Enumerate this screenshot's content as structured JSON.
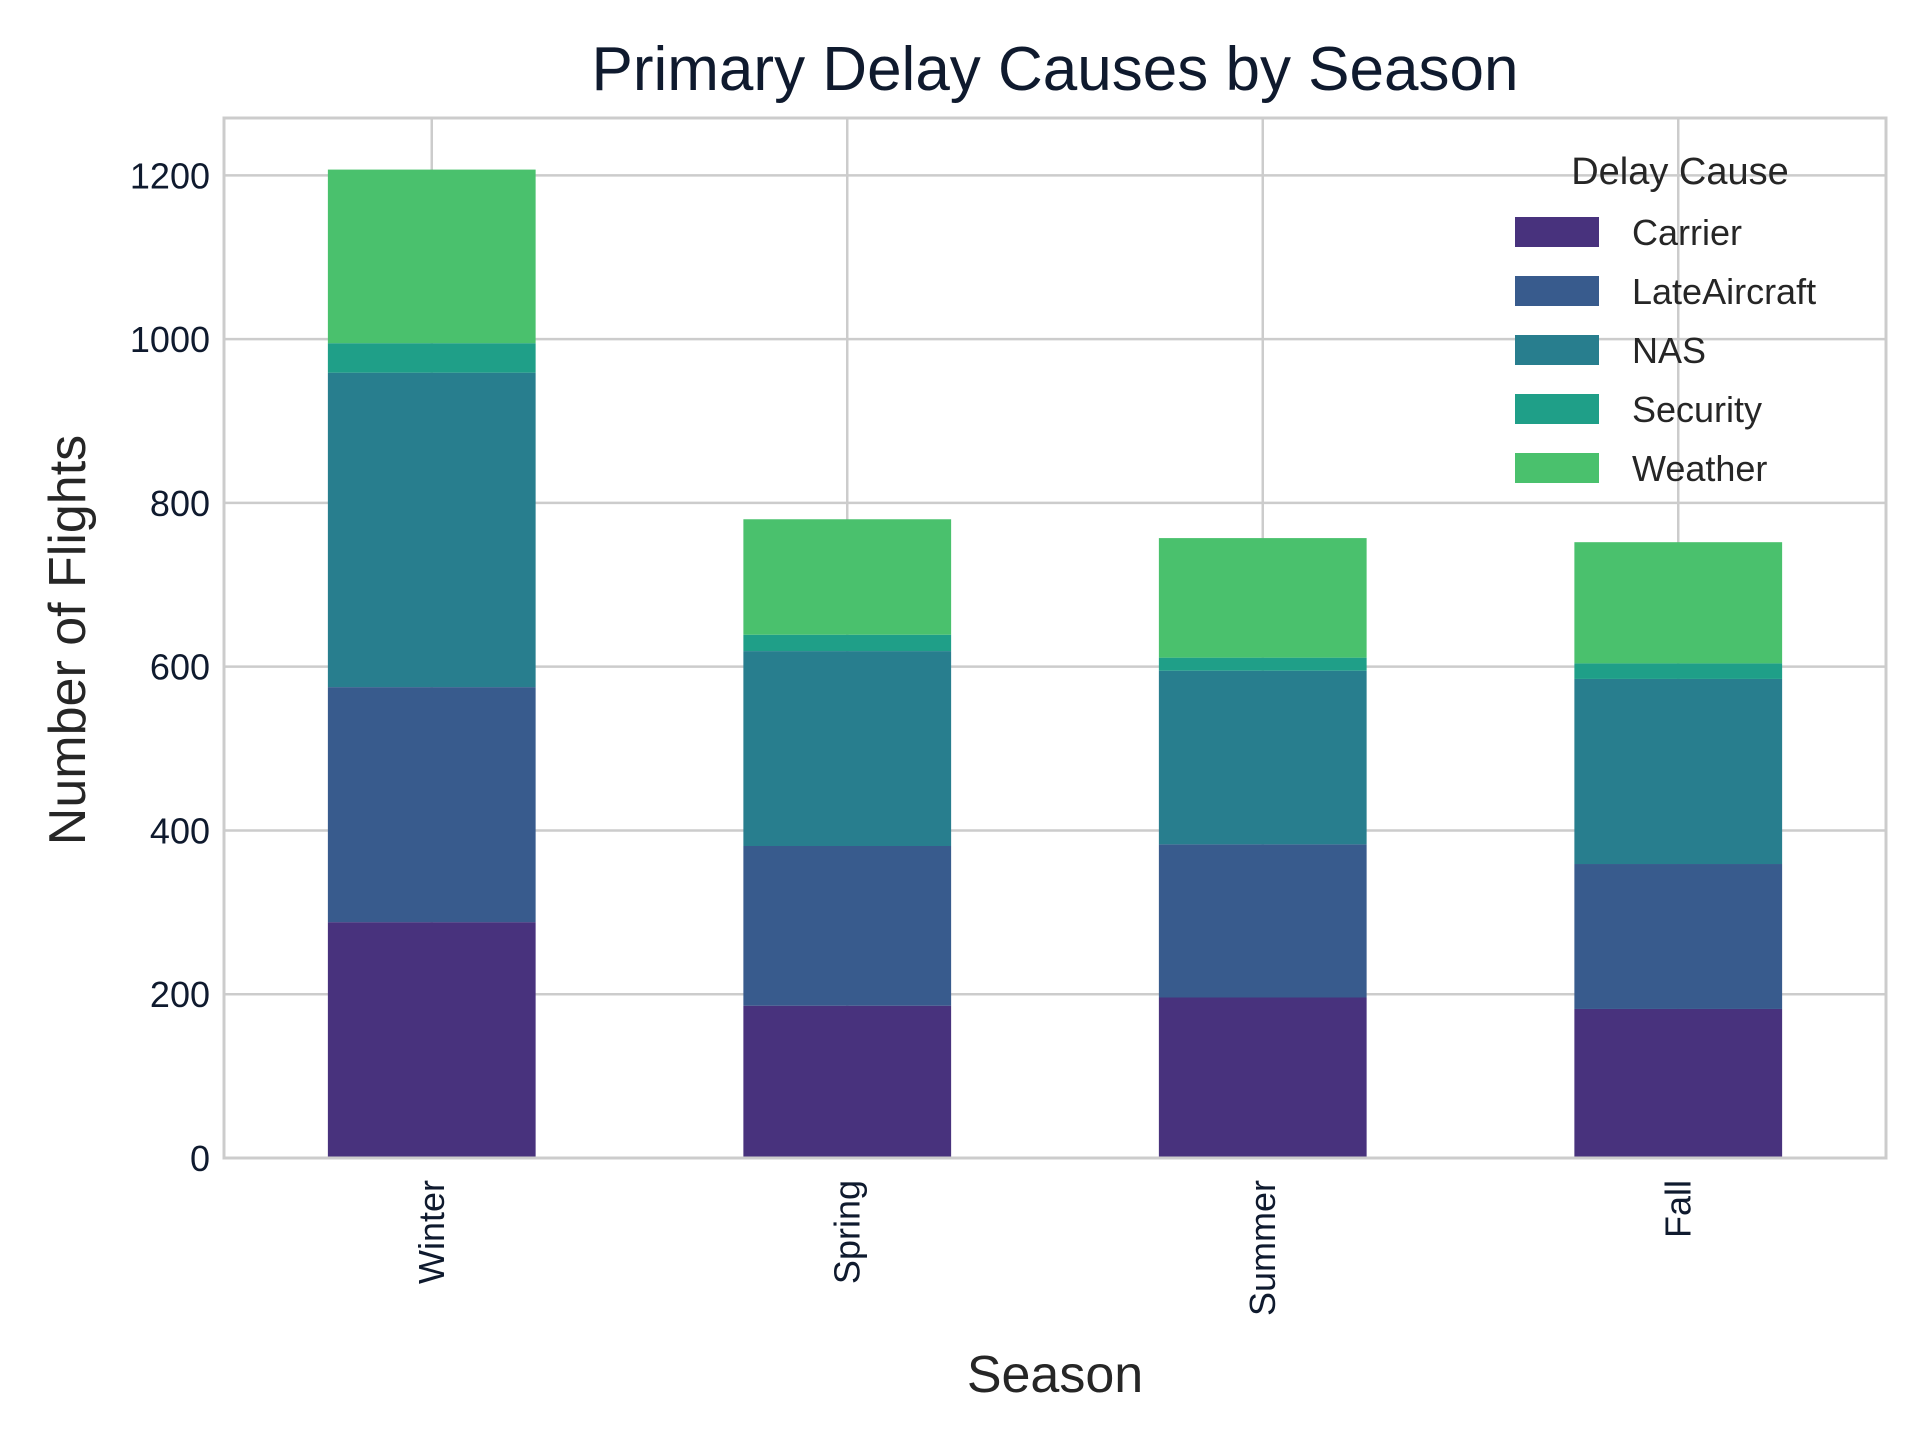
{
  "chart_data": {
    "type": "bar",
    "stacked": true,
    "title": "Primary Delay Causes by Season",
    "xlabel": "Season",
    "ylabel": "Number of Flights",
    "categories": [
      "Winter",
      "Spring",
      "Summer",
      "Fall"
    ],
    "ylim": [
      0,
      1270
    ],
    "yticks": [
      0,
      200,
      400,
      600,
      800,
      1000,
      1200
    ],
    "grid": true,
    "legend": {
      "title": "Delay Cause",
      "position": "top-right"
    },
    "series": [
      {
        "name": "Carrier",
        "color": "#48327d",
        "values": [
          288,
          186,
          196,
          182
        ]
      },
      {
        "name": "LateAircraft",
        "color": "#385b8d",
        "values": [
          287,
          195,
          187,
          177
        ]
      },
      {
        "name": "NAS",
        "color": "#287e8e",
        "values": [
          384,
          238,
          212,
          226
        ]
      },
      {
        "name": "Security",
        "color": "#1f9f88",
        "values": [
          36,
          20,
          16,
          19
        ]
      },
      {
        "name": "Weather",
        "color": "#4ac16d",
        "values": [
          212,
          141,
          146,
          148
        ]
      }
    ]
  }
}
